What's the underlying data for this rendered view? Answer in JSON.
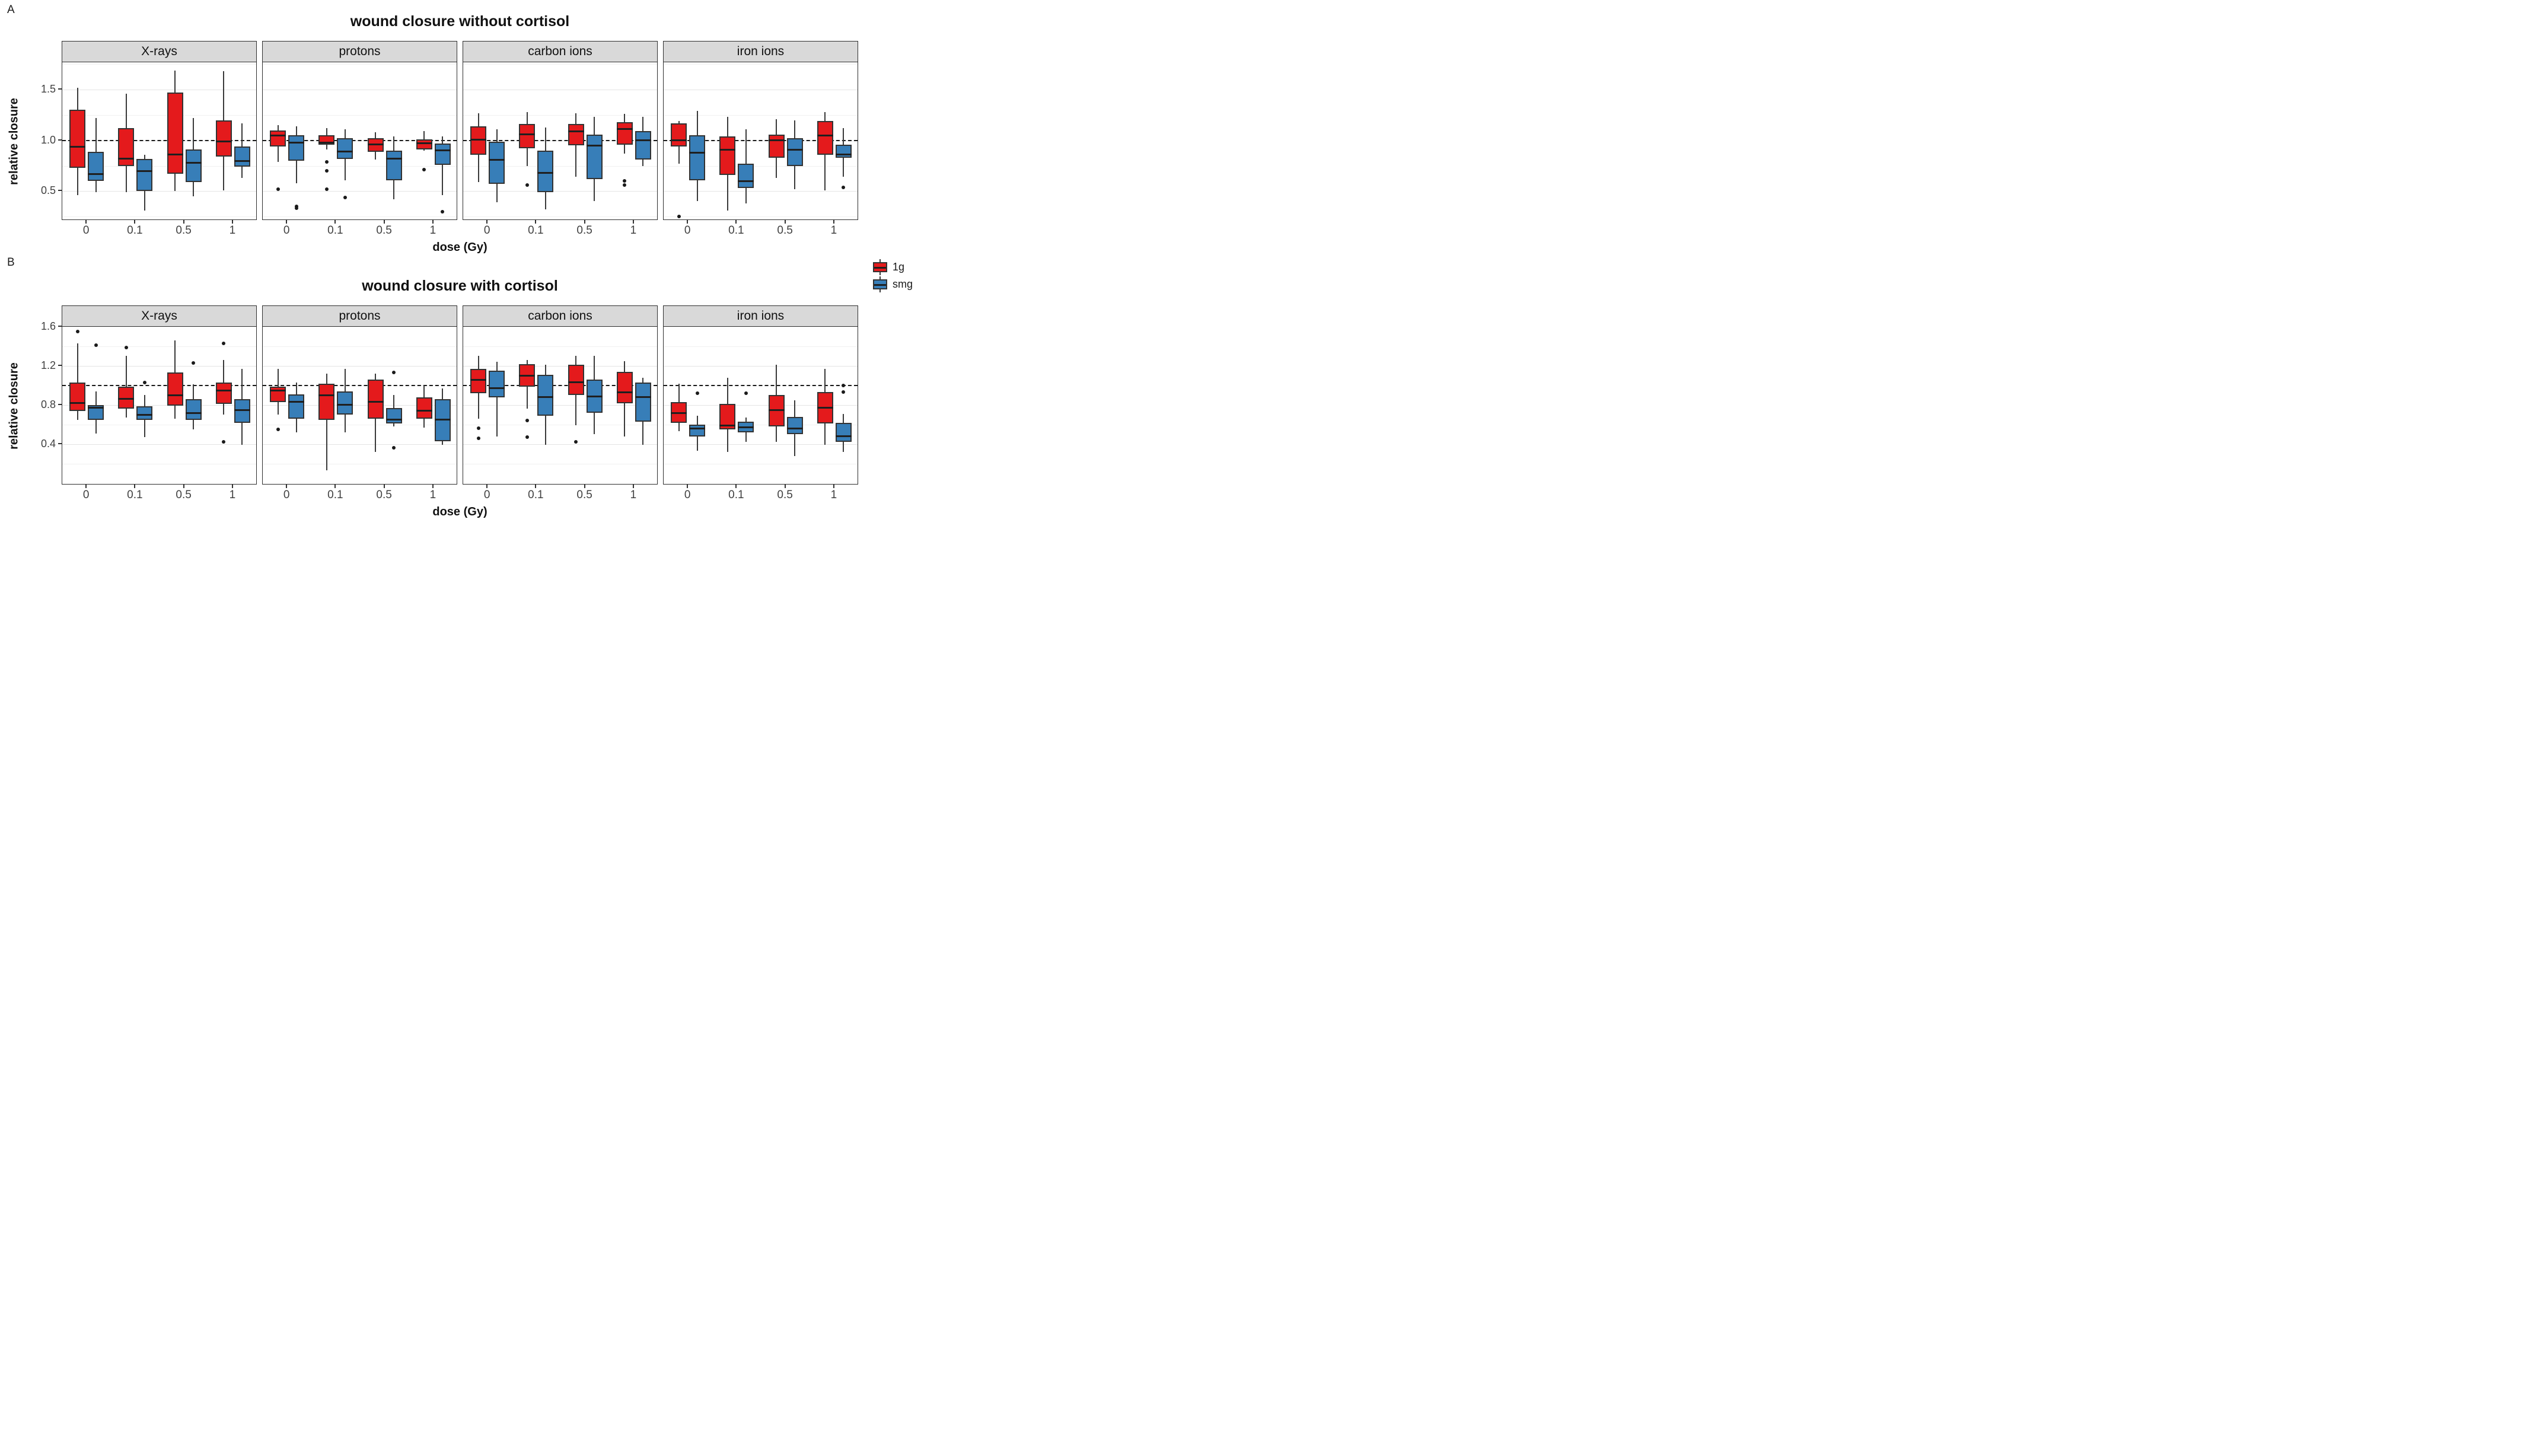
{
  "page": {
    "background": "#ffffff"
  },
  "legend": {
    "items": [
      {
        "label": "1g",
        "color": "#e41a1c"
      },
      {
        "label": "smg",
        "color": "#377eb8"
      }
    ]
  },
  "stats_order": [
    "whisker_low",
    "q1",
    "median",
    "q3",
    "whisker_high"
  ],
  "chart_data": [
    {
      "type": "boxplot",
      "panel_label": "A",
      "title": "wound closure without cortisol",
      "xlabel": "dose (Gy)",
      "ylabel": "relative closure",
      "facets": [
        "X-rays",
        "protons",
        "carbon ions",
        "iron ions"
      ],
      "dose_labels": [
        "0",
        "0.1",
        "0.5",
        "1"
      ],
      "groups": [
        {
          "name": "1g",
          "color": "#e41a1c"
        },
        {
          "name": "smg",
          "color": "#377eb8"
        }
      ],
      "reference_line": 1.0,
      "ylim": [
        0.21,
        1.77
      ],
      "yticks": [
        {
          "label": "1.5",
          "value": 1.5
        },
        {
          "label": "1.0",
          "value": 1.0
        },
        {
          "label": "0.5",
          "value": 0.5
        }
      ],
      "major_gridlines": [
        0.5,
        1.0,
        1.5
      ],
      "minor_gridlines": [
        0.25,
        0.75,
        1.25,
        1.75
      ],
      "legend_position": "right",
      "boxes": [
        {
          "facet": "X-rays",
          "dose": "0",
          "group": "1g",
          "stats": [
            0.46,
            0.73,
            0.94,
            1.3,
            1.52
          ],
          "outliers": []
        },
        {
          "facet": "X-rays",
          "dose": "0",
          "group": "smg",
          "stats": [
            0.49,
            0.6,
            0.67,
            0.89,
            1.22
          ],
          "outliers": []
        },
        {
          "facet": "X-rays",
          "dose": "0.1",
          "group": "1g",
          "stats": [
            0.49,
            0.75,
            0.82,
            1.12,
            1.46
          ],
          "outliers": []
        },
        {
          "facet": "X-rays",
          "dose": "0.1",
          "group": "smg",
          "stats": [
            0.31,
            0.5,
            0.7,
            0.82,
            0.86
          ],
          "outliers": []
        },
        {
          "facet": "X-rays",
          "dose": "0.5",
          "group": "1g",
          "stats": [
            0.5,
            0.67,
            0.86,
            1.47,
            1.69
          ],
          "outliers": []
        },
        {
          "facet": "X-rays",
          "dose": "0.5",
          "group": "smg",
          "stats": [
            0.45,
            0.59,
            0.78,
            0.91,
            1.22
          ],
          "outliers": []
        },
        {
          "facet": "X-rays",
          "dose": "1",
          "group": "1g",
          "stats": [
            0.51,
            0.84,
            0.99,
            1.2,
            1.68
          ],
          "outliers": []
        },
        {
          "facet": "X-rays",
          "dose": "1",
          "group": "smg",
          "stats": [
            0.63,
            0.74,
            0.8,
            0.94,
            1.17
          ],
          "outliers": []
        },
        {
          "facet": "protons",
          "dose": "0",
          "group": "1g",
          "stats": [
            0.79,
            0.94,
            1.05,
            1.1,
            1.15
          ],
          "outliers": [
            0.52
          ]
        },
        {
          "facet": "protons",
          "dose": "0",
          "group": "smg",
          "stats": [
            0.58,
            0.8,
            0.98,
            1.05,
            1.14
          ],
          "outliers": [
            0.35,
            0.33
          ]
        },
        {
          "facet": "protons",
          "dose": "0.1",
          "group": "1g",
          "stats": [
            0.91,
            0.96,
            0.98,
            1.05,
            1.12
          ],
          "outliers": [
            0.79,
            0.7,
            0.52
          ]
        },
        {
          "facet": "protons",
          "dose": "0.1",
          "group": "smg",
          "stats": [
            0.61,
            0.82,
            0.89,
            1.02,
            1.11
          ],
          "outliers": [
            0.44
          ]
        },
        {
          "facet": "protons",
          "dose": "0.5",
          "group": "1g",
          "stats": [
            0.81,
            0.89,
            0.96,
            1.02,
            1.08
          ],
          "outliers": []
        },
        {
          "facet": "protons",
          "dose": "0.5",
          "group": "smg",
          "stats": [
            0.42,
            0.61,
            0.82,
            0.9,
            1.04
          ],
          "outliers": []
        },
        {
          "facet": "protons",
          "dose": "1",
          "group": "1g",
          "stats": [
            0.9,
            0.91,
            0.97,
            1.01,
            1.09
          ],
          "outliers": [
            0.71
          ]
        },
        {
          "facet": "protons",
          "dose": "1",
          "group": "smg",
          "stats": [
            0.46,
            0.76,
            0.9,
            0.97,
            1.04
          ],
          "outliers": [
            0.3
          ]
        },
        {
          "facet": "carbon ions",
          "dose": "0",
          "group": "1g",
          "stats": [
            0.59,
            0.86,
            1.01,
            1.14,
            1.27
          ],
          "outliers": []
        },
        {
          "facet": "carbon ions",
          "dose": "0",
          "group": "smg",
          "stats": [
            0.39,
            0.57,
            0.81,
            0.99,
            1.11
          ],
          "outliers": []
        },
        {
          "facet": "carbon ions",
          "dose": "0.1",
          "group": "1g",
          "stats": [
            0.75,
            0.92,
            1.06,
            1.16,
            1.28
          ],
          "outliers": [
            0.56
          ]
        },
        {
          "facet": "carbon ions",
          "dose": "0.1",
          "group": "smg",
          "stats": [
            0.32,
            0.49,
            0.68,
            0.9,
            1.13
          ],
          "outliers": []
        },
        {
          "facet": "carbon ions",
          "dose": "0.5",
          "group": "1g",
          "stats": [
            0.64,
            0.95,
            1.09,
            1.16,
            1.27
          ],
          "outliers": []
        },
        {
          "facet": "carbon ions",
          "dose": "0.5",
          "group": "smg",
          "stats": [
            0.4,
            0.62,
            0.95,
            1.06,
            1.23
          ],
          "outliers": []
        },
        {
          "facet": "carbon ions",
          "dose": "1",
          "group": "1g",
          "stats": [
            0.87,
            0.96,
            1.11,
            1.18,
            1.26
          ],
          "outliers": [
            0.6,
            0.56
          ]
        },
        {
          "facet": "carbon ions",
          "dose": "1",
          "group": "smg",
          "stats": [
            0.75,
            0.81,
            1.0,
            1.09,
            1.23
          ],
          "outliers": []
        },
        {
          "facet": "iron ions",
          "dose": "0",
          "group": "1g",
          "stats": [
            0.77,
            0.94,
            1.0,
            1.17,
            1.19
          ],
          "outliers": [
            0.25
          ]
        },
        {
          "facet": "iron ions",
          "dose": "0",
          "group": "smg",
          "stats": [
            0.4,
            0.61,
            0.88,
            1.05,
            1.29
          ],
          "outliers": []
        },
        {
          "facet": "iron ions",
          "dose": "0.1",
          "group": "1g",
          "stats": [
            0.31,
            0.66,
            0.91,
            1.04,
            1.23
          ],
          "outliers": []
        },
        {
          "facet": "iron ions",
          "dose": "0.1",
          "group": "smg",
          "stats": [
            0.38,
            0.53,
            0.6,
            0.77,
            1.11
          ],
          "outliers": []
        },
        {
          "facet": "iron ions",
          "dose": "0.5",
          "group": "1g",
          "stats": [
            0.63,
            0.83,
            1.0,
            1.06,
            1.21
          ],
          "outliers": []
        },
        {
          "facet": "iron ions",
          "dose": "0.5",
          "group": "smg",
          "stats": [
            0.52,
            0.75,
            0.91,
            1.02,
            1.2
          ],
          "outliers": []
        },
        {
          "facet": "iron ions",
          "dose": "1",
          "group": "1g",
          "stats": [
            0.51,
            0.86,
            1.05,
            1.19,
            1.28
          ],
          "outliers": []
        },
        {
          "facet": "iron ions",
          "dose": "1",
          "group": "smg",
          "stats": [
            0.64,
            0.83,
            0.86,
            0.96,
            1.12
          ],
          "outliers": [
            0.54
          ]
        }
      ]
    },
    {
      "type": "boxplot",
      "panel_label": "B",
      "title": "wound closure with cortisol",
      "xlabel": "dose (Gy)",
      "ylabel": "relative closure",
      "facets": [
        "X-rays",
        "protons",
        "carbon ions",
        "iron ions"
      ],
      "dose_labels": [
        "0",
        "0.1",
        "0.5",
        "1"
      ],
      "groups": [
        {
          "name": "1g",
          "color": "#e41a1c"
        },
        {
          "name": "smg",
          "color": "#377eb8"
        }
      ],
      "reference_line": 1.0,
      "ylim": [
        -0.02,
        1.6
      ],
      "yticks": [
        {
          "label": "1.6",
          "value": 1.6
        },
        {
          "label": "1.2",
          "value": 1.2
        },
        {
          "label": "0.8",
          "value": 0.8
        },
        {
          "label": "0.4",
          "value": 0.4
        }
      ],
      "major_gridlines": [
        0.4,
        0.8,
        1.2,
        1.6
      ],
      "minor_gridlines": [
        0.2,
        0.6,
        1.0,
        1.4
      ],
      "legend_position": "right",
      "boxes": [
        {
          "facet": "X-rays",
          "dose": "0",
          "group": "1g",
          "stats": [
            0.65,
            0.74,
            0.82,
            1.03,
            1.43
          ],
          "outliers": [
            1.55
          ]
        },
        {
          "facet": "X-rays",
          "dose": "0",
          "group": "smg",
          "stats": [
            0.51,
            0.65,
            0.77,
            0.8,
            0.94
          ],
          "outliers": [
            1.41
          ]
        },
        {
          "facet": "X-rays",
          "dose": "0.1",
          "group": "1g",
          "stats": [
            0.67,
            0.76,
            0.86,
            0.99,
            1.3
          ],
          "outliers": [
            1.39
          ]
        },
        {
          "facet": "X-rays",
          "dose": "0.1",
          "group": "smg",
          "stats": [
            0.47,
            0.65,
            0.7,
            0.79,
            0.9
          ],
          "outliers": [
            1.03
          ]
        },
        {
          "facet": "X-rays",
          "dose": "0.5",
          "group": "1g",
          "stats": [
            0.66,
            0.79,
            0.9,
            1.13,
            1.46
          ],
          "outliers": []
        },
        {
          "facet": "X-rays",
          "dose": "0.5",
          "group": "smg",
          "stats": [
            0.55,
            0.65,
            0.72,
            0.86,
            1.01
          ],
          "outliers": [
            1.23
          ]
        },
        {
          "facet": "X-rays",
          "dose": "1",
          "group": "1g",
          "stats": [
            0.7,
            0.81,
            0.95,
            1.03,
            1.26
          ],
          "outliers": [
            1.43,
            0.42
          ]
        },
        {
          "facet": "X-rays",
          "dose": "1",
          "group": "smg",
          "stats": [
            0.39,
            0.62,
            0.75,
            0.86,
            1.17
          ],
          "outliers": []
        },
        {
          "facet": "protons",
          "dose": "0",
          "group": "1g",
          "stats": [
            0.7,
            0.83,
            0.95,
            0.99,
            1.17
          ],
          "outliers": [
            0.55
          ]
        },
        {
          "facet": "protons",
          "dose": "0",
          "group": "smg",
          "stats": [
            0.52,
            0.66,
            0.83,
            0.91,
            1.03
          ],
          "outliers": []
        },
        {
          "facet": "protons",
          "dose": "0.1",
          "group": "1g",
          "stats": [
            0.13,
            0.65,
            0.9,
            1.02,
            1.12
          ],
          "outliers": []
        },
        {
          "facet": "protons",
          "dose": "0.1",
          "group": "smg",
          "stats": [
            0.52,
            0.7,
            0.8,
            0.94,
            1.17
          ],
          "outliers": []
        },
        {
          "facet": "protons",
          "dose": "0.5",
          "group": "1g",
          "stats": [
            0.32,
            0.66,
            0.83,
            1.06,
            1.12
          ],
          "outliers": []
        },
        {
          "facet": "protons",
          "dose": "0.5",
          "group": "smg",
          "stats": [
            0.58,
            0.61,
            0.65,
            0.77,
            0.9
          ],
          "outliers": [
            1.13,
            0.36
          ]
        },
        {
          "facet": "protons",
          "dose": "1",
          "group": "1g",
          "stats": [
            0.57,
            0.66,
            0.74,
            0.88,
            1.0
          ],
          "outliers": []
        },
        {
          "facet": "protons",
          "dose": "1",
          "group": "smg",
          "stats": [
            0.39,
            0.43,
            0.65,
            0.86,
            0.97
          ],
          "outliers": []
        },
        {
          "facet": "carbon ions",
          "dose": "0",
          "group": "1g",
          "stats": [
            0.66,
            0.92,
            1.06,
            1.17,
            1.3
          ],
          "outliers": [
            0.56,
            0.46
          ]
        },
        {
          "facet": "carbon ions",
          "dose": "0",
          "group": "smg",
          "stats": [
            0.48,
            0.88,
            0.97,
            1.15,
            1.24
          ],
          "outliers": []
        },
        {
          "facet": "carbon ions",
          "dose": "0.1",
          "group": "1g",
          "stats": [
            0.76,
            0.99,
            1.1,
            1.22,
            1.26
          ],
          "outliers": [
            0.64,
            0.47
          ]
        },
        {
          "facet": "carbon ions",
          "dose": "0.1",
          "group": "smg",
          "stats": [
            0.39,
            0.69,
            0.88,
            1.11,
            1.21
          ],
          "outliers": []
        },
        {
          "facet": "carbon ions",
          "dose": "0.5",
          "group": "1g",
          "stats": [
            0.59,
            0.9,
            1.03,
            1.21,
            1.3
          ],
          "outliers": [
            0.42
          ]
        },
        {
          "facet": "carbon ions",
          "dose": "0.5",
          "group": "smg",
          "stats": [
            0.5,
            0.72,
            0.89,
            1.06,
            1.3
          ],
          "outliers": []
        },
        {
          "facet": "carbon ions",
          "dose": "1",
          "group": "1g",
          "stats": [
            0.48,
            0.82,
            0.93,
            1.14,
            1.25
          ],
          "outliers": []
        },
        {
          "facet": "carbon ions",
          "dose": "1",
          "group": "smg",
          "stats": [
            0.39,
            0.63,
            0.88,
            1.03,
            1.08
          ],
          "outliers": []
        },
        {
          "facet": "iron ions",
          "dose": "0",
          "group": "1g",
          "stats": [
            0.53,
            0.62,
            0.72,
            0.83,
            1.02
          ],
          "outliers": []
        },
        {
          "facet": "iron ions",
          "dose": "0",
          "group": "smg",
          "stats": [
            0.33,
            0.48,
            0.56,
            0.6,
            0.69
          ],
          "outliers": [
            0.92
          ]
        },
        {
          "facet": "iron ions",
          "dose": "0.1",
          "group": "1g",
          "stats": [
            0.32,
            0.55,
            0.59,
            0.81,
            1.08
          ],
          "outliers": []
        },
        {
          "facet": "iron ions",
          "dose": "0.1",
          "group": "smg",
          "stats": [
            0.42,
            0.52,
            0.57,
            0.63,
            0.67
          ],
          "outliers": [
            0.92
          ]
        },
        {
          "facet": "iron ions",
          "dose": "0.5",
          "group": "1g",
          "stats": [
            0.42,
            0.58,
            0.75,
            0.9,
            1.21
          ],
          "outliers": []
        },
        {
          "facet": "iron ions",
          "dose": "0.5",
          "group": "smg",
          "stats": [
            0.28,
            0.5,
            0.56,
            0.68,
            0.85
          ],
          "outliers": []
        },
        {
          "facet": "iron ions",
          "dose": "1",
          "group": "1g",
          "stats": [
            0.39,
            0.61,
            0.77,
            0.93,
            1.17
          ],
          "outliers": []
        },
        {
          "facet": "iron ions",
          "dose": "1",
          "group": "smg",
          "stats": [
            0.32,
            0.42,
            0.48,
            0.62,
            0.71
          ],
          "outliers": [
            1.0,
            0.93
          ]
        }
      ]
    }
  ]
}
